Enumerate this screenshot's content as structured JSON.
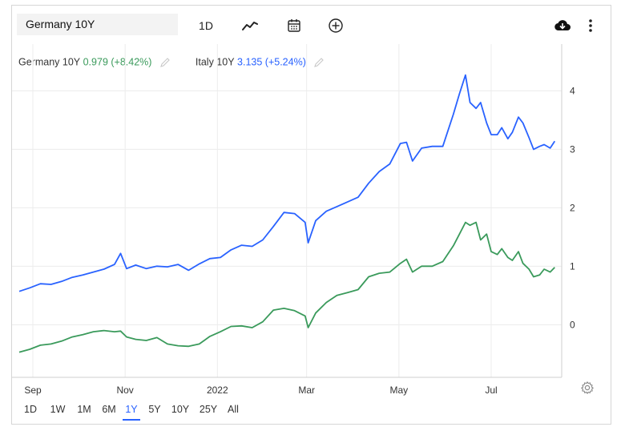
{
  "symbol": {
    "value": "Germany 10Y"
  },
  "toolbar": {
    "interval_label": "1D",
    "icons": [
      "line-chart-icon",
      "calendar-icon",
      "add-circle-icon",
      "cloud-download-icon",
      "more-vertical-icon"
    ]
  },
  "legend": [
    {
      "name": "Germany 10Y",
      "value": "0.979",
      "change": "(+8.42%)",
      "color": "#3a9a5b"
    },
    {
      "name": "Italy 10Y",
      "value": "3.135",
      "change": "(+5.24%)",
      "color": "#2962ff"
    }
  ],
  "ranges": {
    "items": [
      "1D",
      "1W",
      "1M",
      "6M",
      "1Y",
      "5Y",
      "10Y",
      "25Y",
      "All"
    ],
    "active": "1Y"
  },
  "chart_data": {
    "type": "line",
    "x_axis_labels": [
      "Sep",
      "Nov",
      "2022",
      "Mar",
      "May",
      "Jul"
    ],
    "y_axis_labels": [
      "0",
      "1",
      "2",
      "3",
      "4"
    ],
    "ylim": [
      -0.9,
      4.8
    ],
    "grid": true,
    "series": [
      {
        "name": "Italy 10Y",
        "color": "#2962ff",
        "points": [
          [
            "2021-08-23",
            0.57
          ],
          [
            "2021-08-30",
            0.63
          ],
          [
            "2021-09-06",
            0.7
          ],
          [
            "2021-09-13",
            0.69
          ],
          [
            "2021-09-20",
            0.74
          ],
          [
            "2021-09-27",
            0.81
          ],
          [
            "2021-10-04",
            0.85
          ],
          [
            "2021-10-11",
            0.9
          ],
          [
            "2021-10-18",
            0.95
          ],
          [
            "2021-10-25",
            1.03
          ],
          [
            "2021-10-29",
            1.22
          ],
          [
            "2021-11-02",
            0.96
          ],
          [
            "2021-11-08",
            1.02
          ],
          [
            "2021-11-15",
            0.96
          ],
          [
            "2021-11-22",
            1.0
          ],
          [
            "2021-11-29",
            0.99
          ],
          [
            "2021-12-06",
            1.03
          ],
          [
            "2021-12-13",
            0.93
          ],
          [
            "2021-12-20",
            1.04
          ],
          [
            "2021-12-27",
            1.13
          ],
          [
            "2022-01-03",
            1.15
          ],
          [
            "2022-01-10",
            1.28
          ],
          [
            "2022-01-17",
            1.36
          ],
          [
            "2022-01-24",
            1.34
          ],
          [
            "2022-01-31",
            1.45
          ],
          [
            "2022-02-07",
            1.68
          ],
          [
            "2022-02-14",
            1.92
          ],
          [
            "2022-02-21",
            1.9
          ],
          [
            "2022-02-28",
            1.75
          ],
          [
            "2022-03-02",
            1.4
          ],
          [
            "2022-03-07",
            1.78
          ],
          [
            "2022-03-14",
            1.94
          ],
          [
            "2022-03-21",
            2.02
          ],
          [
            "2022-03-28",
            2.1
          ],
          [
            "2022-04-04",
            2.18
          ],
          [
            "2022-04-11",
            2.42
          ],
          [
            "2022-04-18",
            2.62
          ],
          [
            "2022-04-25",
            2.75
          ],
          [
            "2022-05-02",
            3.1
          ],
          [
            "2022-05-06",
            3.12
          ],
          [
            "2022-05-10",
            2.8
          ],
          [
            "2022-05-16",
            3.02
          ],
          [
            "2022-05-23",
            3.05
          ],
          [
            "2022-05-30",
            3.05
          ],
          [
            "2022-06-06",
            3.6
          ],
          [
            "2022-06-10",
            3.95
          ],
          [
            "2022-06-14",
            4.27
          ],
          [
            "2022-06-17",
            3.8
          ],
          [
            "2022-06-21",
            3.7
          ],
          [
            "2022-06-24",
            3.8
          ],
          [
            "2022-06-28",
            3.45
          ],
          [
            "2022-07-01",
            3.25
          ],
          [
            "2022-07-05",
            3.25
          ],
          [
            "2022-07-08",
            3.37
          ],
          [
            "2022-07-12",
            3.18
          ],
          [
            "2022-07-15",
            3.29
          ],
          [
            "2022-07-19",
            3.55
          ],
          [
            "2022-07-22",
            3.45
          ],
          [
            "2022-07-26",
            3.2
          ],
          [
            "2022-07-29",
            3.0
          ],
          [
            "2022-08-02",
            3.05
          ],
          [
            "2022-08-05",
            3.08
          ],
          [
            "2022-08-09",
            3.02
          ],
          [
            "2022-08-12",
            3.14
          ]
        ]
      },
      {
        "name": "Germany 10Y",
        "color": "#3a9a5b",
        "points": [
          [
            "2021-08-23",
            -0.47
          ],
          [
            "2021-08-30",
            -0.42
          ],
          [
            "2021-09-06",
            -0.35
          ],
          [
            "2021-09-13",
            -0.33
          ],
          [
            "2021-09-20",
            -0.28
          ],
          [
            "2021-09-27",
            -0.21
          ],
          [
            "2021-10-04",
            -0.17
          ],
          [
            "2021-10-11",
            -0.12
          ],
          [
            "2021-10-18",
            -0.1
          ],
          [
            "2021-10-25",
            -0.12
          ],
          [
            "2021-10-29",
            -0.11
          ],
          [
            "2021-11-02",
            -0.21
          ],
          [
            "2021-11-08",
            -0.25
          ],
          [
            "2021-11-15",
            -0.27
          ],
          [
            "2021-11-22",
            -0.22
          ],
          [
            "2021-11-29",
            -0.33
          ],
          [
            "2021-12-06",
            -0.36
          ],
          [
            "2021-12-13",
            -0.37
          ],
          [
            "2021-12-20",
            -0.33
          ],
          [
            "2021-12-27",
            -0.2
          ],
          [
            "2022-01-03",
            -0.12
          ],
          [
            "2022-01-10",
            -0.03
          ],
          [
            "2022-01-17",
            -0.02
          ],
          [
            "2022-01-24",
            -0.05
          ],
          [
            "2022-01-31",
            0.05
          ],
          [
            "2022-02-07",
            0.25
          ],
          [
            "2022-02-14",
            0.28
          ],
          [
            "2022-02-21",
            0.24
          ],
          [
            "2022-02-28",
            0.15
          ],
          [
            "2022-03-02",
            -0.05
          ],
          [
            "2022-03-07",
            0.2
          ],
          [
            "2022-03-14",
            0.38
          ],
          [
            "2022-03-21",
            0.5
          ],
          [
            "2022-03-28",
            0.55
          ],
          [
            "2022-04-04",
            0.6
          ],
          [
            "2022-04-11",
            0.82
          ],
          [
            "2022-04-18",
            0.88
          ],
          [
            "2022-04-25",
            0.9
          ],
          [
            "2022-05-02",
            1.05
          ],
          [
            "2022-05-06",
            1.12
          ],
          [
            "2022-05-10",
            0.9
          ],
          [
            "2022-05-16",
            1.0
          ],
          [
            "2022-05-23",
            1.0
          ],
          [
            "2022-05-30",
            1.08
          ],
          [
            "2022-06-06",
            1.35
          ],
          [
            "2022-06-10",
            1.55
          ],
          [
            "2022-06-14",
            1.75
          ],
          [
            "2022-06-17",
            1.7
          ],
          [
            "2022-06-21",
            1.75
          ],
          [
            "2022-06-24",
            1.45
          ],
          [
            "2022-06-28",
            1.55
          ],
          [
            "2022-07-01",
            1.25
          ],
          [
            "2022-07-05",
            1.2
          ],
          [
            "2022-07-08",
            1.3
          ],
          [
            "2022-07-12",
            1.15
          ],
          [
            "2022-07-15",
            1.1
          ],
          [
            "2022-07-19",
            1.25
          ],
          [
            "2022-07-22",
            1.05
          ],
          [
            "2022-07-26",
            0.95
          ],
          [
            "2022-07-29",
            0.82
          ],
          [
            "2022-08-02",
            0.85
          ],
          [
            "2022-08-05",
            0.95
          ],
          [
            "2022-08-09",
            0.9
          ],
          [
            "2022-08-12",
            0.98
          ]
        ]
      }
    ]
  }
}
